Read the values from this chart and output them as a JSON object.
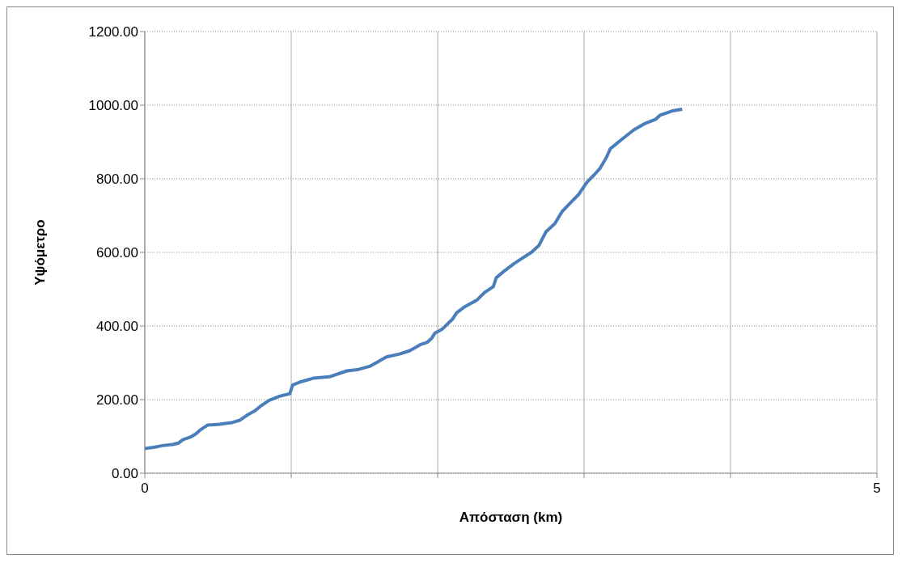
{
  "chart_data": {
    "type": "line",
    "xlabel": "Απόσταση (km)",
    "ylabel": "Υψόμετρο",
    "x": [
      0,
      0.07,
      0.12,
      0.19,
      0.23,
      0.26,
      0.31,
      0.35,
      0.38,
      0.43,
      0.51,
      0.6,
      0.65,
      0.7,
      0.75,
      0.79,
      0.85,
      0.92,
      0.99,
      1.01,
      1.07,
      1.15,
      1.26,
      1.38,
      1.46,
      1.54,
      1.59,
      1.65,
      1.74,
      1.81,
      1.88,
      1.93,
      1.96,
      1.98,
      2.03,
      2.1,
      2.13,
      2.18,
      2.27,
      2.32,
      2.38,
      2.4,
      2.46,
      2.52,
      2.57,
      2.64,
      2.69,
      2.74,
      2.8,
      2.85,
      2.91,
      2.96,
      3.02,
      3.07,
      3.11,
      3.15,
      3.18,
      3.27,
      3.34,
      3.41,
      3.49,
      3.52,
      3.6,
      3.67
    ],
    "series": [
      {
        "color": "#4a7ebb",
        "values": [
          67,
          71,
          75,
          78,
          82,
          91,
          98,
          107,
          118,
          131,
          133,
          138,
          144,
          158,
          169,
          182,
          198,
          209,
          216,
          240,
          249,
          258,
          262,
          278,
          282,
          291,
          302,
          316,
          324,
          333,
          349,
          356,
          367,
          380,
          391,
          418,
          436,
          451,
          471,
          491,
          507,
          531,
          551,
          569,
          582,
          600,
          618,
          656,
          678,
          711,
          736,
          756,
          791,
          811,
          829,
          856,
          882,
          911,
          933,
          949,
          962,
          973,
          984,
          989
        ]
      }
    ],
    "xlim": [
      0,
      5
    ],
    "xticks": [
      0,
      {
        "value": 1,
        "label": null
      },
      {
        "value": 2,
        "label": null
      },
      {
        "value": 3,
        "label": null
      },
      {
        "value": 4,
        "label": null
      },
      5
    ],
    "ylim": [
      0,
      1200
    ],
    "yticks": [
      {
        "value": 0,
        "label": "0.00"
      },
      {
        "value": 200,
        "label": "200.00"
      },
      {
        "value": 400,
        "label": "400.00"
      },
      {
        "value": 600,
        "label": "600.00"
      },
      {
        "value": 800,
        "label": "800.00"
      },
      {
        "value": 1000,
        "label": "1000.00"
      },
      {
        "value": 1200,
        "label": "1200.00"
      }
    ],
    "grid": true,
    "marker": "none",
    "line_style": "solid"
  }
}
